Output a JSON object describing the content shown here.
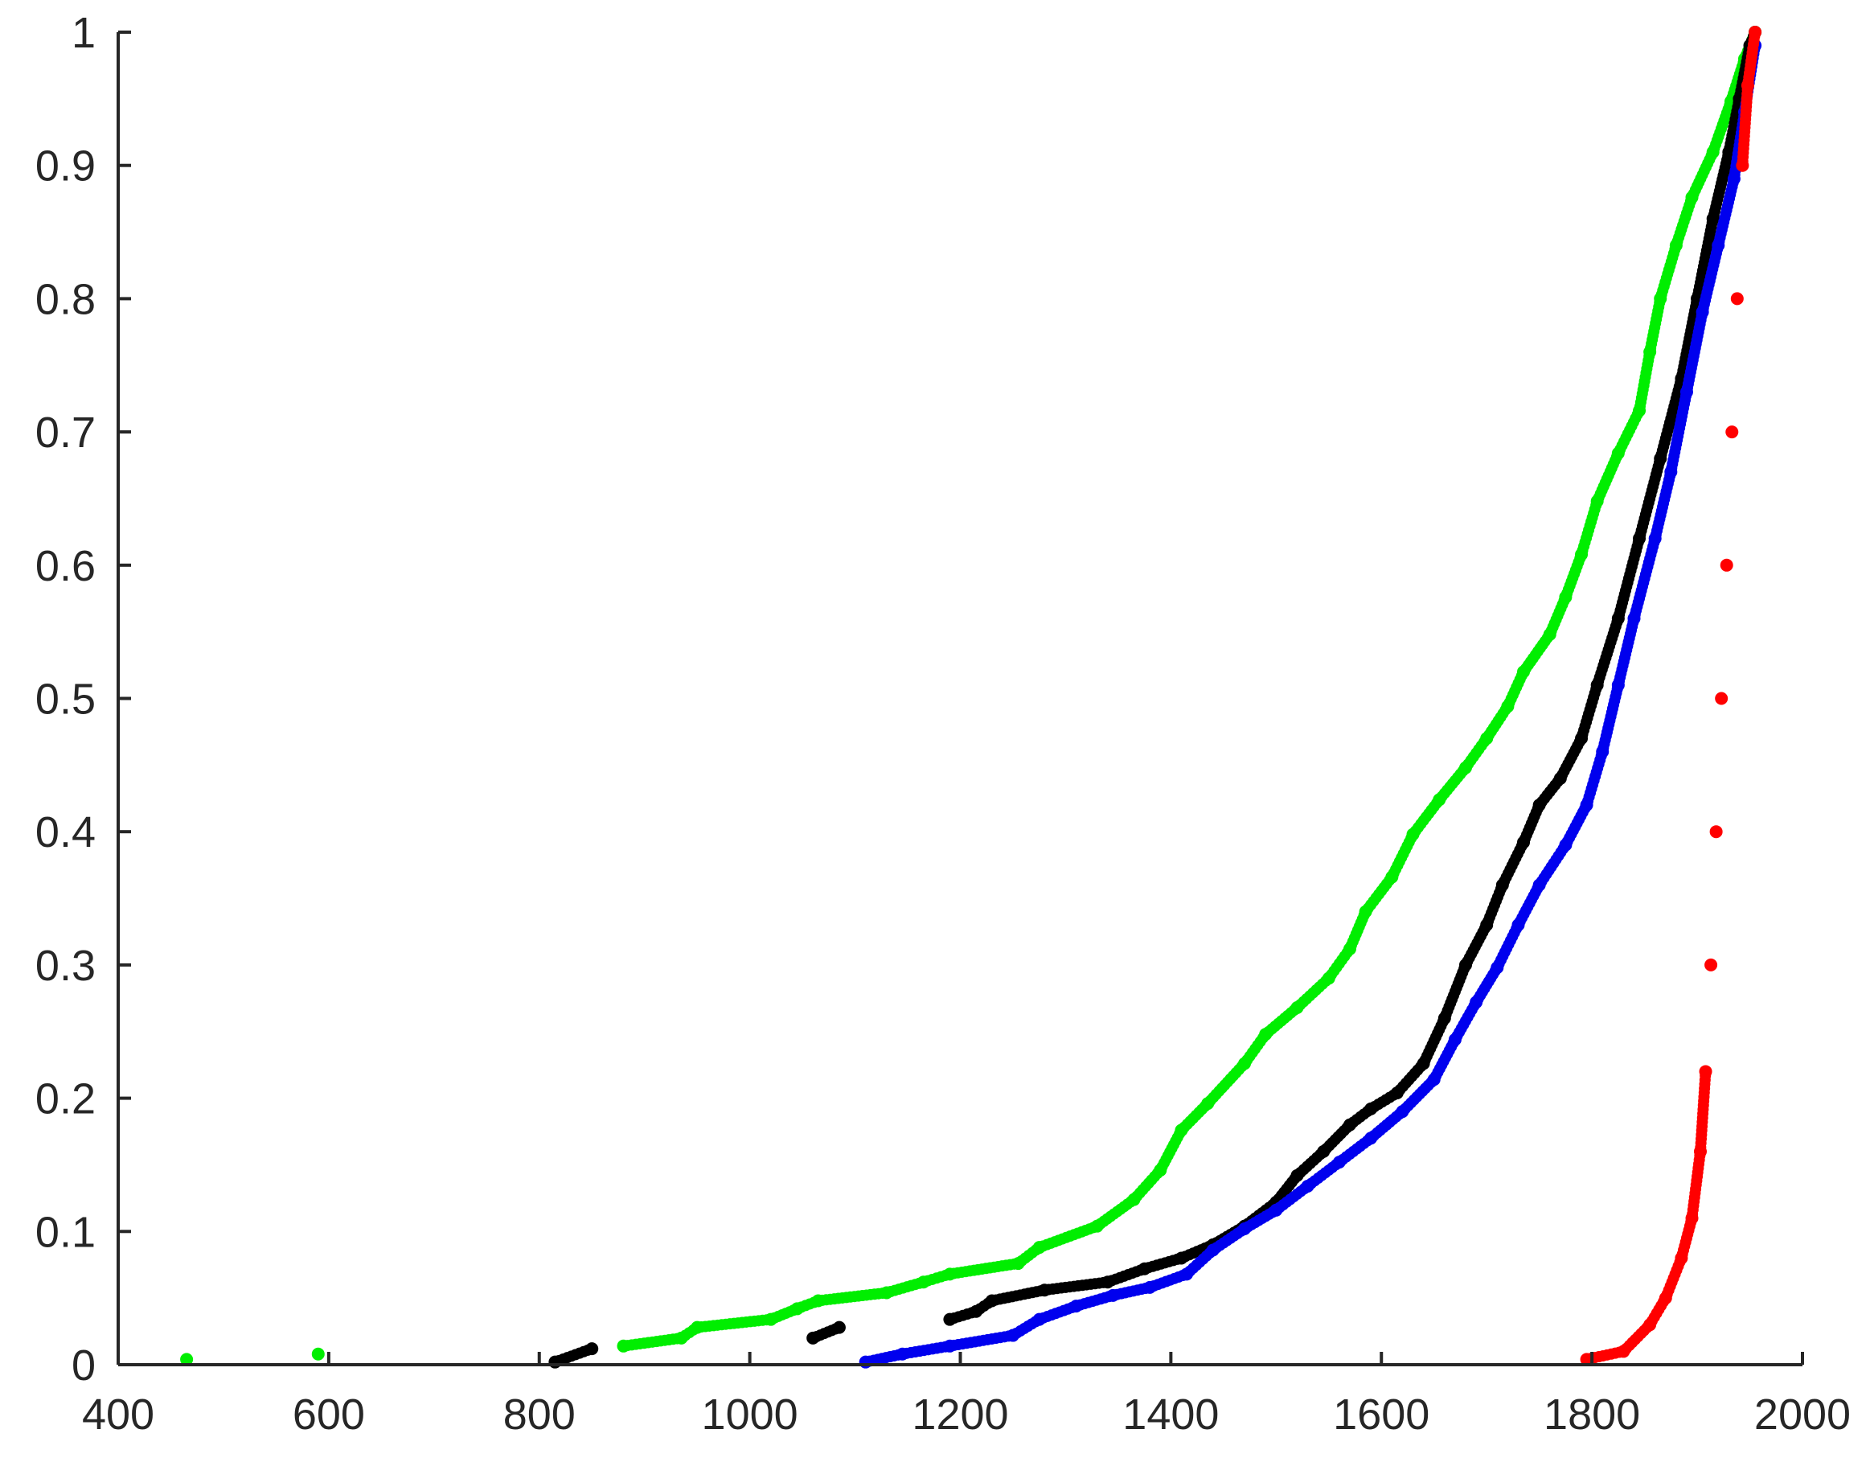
{
  "chart_data": {
    "type": "scatter",
    "title": "",
    "xlabel": "",
    "ylabel": "",
    "xlim": [
      400,
      2000
    ],
    "ylim": [
      0,
      1
    ],
    "grid": false,
    "x_ticks": [
      "400",
      "600",
      "800",
      "1000",
      "1200",
      "1400",
      "1600",
      "1800",
      "2000"
    ],
    "y_ticks": [
      "0",
      "0.1",
      "0.2",
      "0.3",
      "0.4",
      "0.5",
      "0.6",
      "0.7",
      "0.8",
      "0.9",
      "1"
    ],
    "series": [
      {
        "color": "#00ee00",
        "points": [
          [
            465,
            0.004
          ],
          [
            590,
            0.008
          ],
          [
            880,
            0.014
          ],
          [
            935,
            0.02
          ],
          [
            950,
            0.028
          ],
          [
            1020,
            0.034
          ],
          [
            1045,
            0.042
          ],
          [
            1065,
            0.048
          ],
          [
            1130,
            0.054
          ],
          [
            1165,
            0.062
          ],
          [
            1190,
            0.068
          ],
          [
            1255,
            0.076
          ],
          [
            1275,
            0.088
          ],
          [
            1330,
            0.104
          ],
          [
            1365,
            0.124
          ],
          [
            1390,
            0.146
          ],
          [
            1410,
            0.176
          ],
          [
            1435,
            0.196
          ],
          [
            1470,
            0.226
          ],
          [
            1490,
            0.248
          ],
          [
            1520,
            0.268
          ],
          [
            1550,
            0.29
          ],
          [
            1570,
            0.312
          ],
          [
            1585,
            0.34
          ],
          [
            1610,
            0.366
          ],
          [
            1630,
            0.398
          ],
          [
            1655,
            0.424
          ],
          [
            1680,
            0.448
          ],
          [
            1700,
            0.47
          ],
          [
            1720,
            0.494
          ],
          [
            1735,
            0.52
          ],
          [
            1760,
            0.548
          ],
          [
            1775,
            0.576
          ],
          [
            1790,
            0.608
          ],
          [
            1805,
            0.648
          ],
          [
            1825,
            0.684
          ],
          [
            1845,
            0.716
          ],
          [
            1855,
            0.76
          ],
          [
            1865,
            0.8
          ],
          [
            1880,
            0.84
          ],
          [
            1895,
            0.876
          ],
          [
            1915,
            0.91
          ],
          [
            1932,
            0.948
          ],
          [
            1945,
            0.98
          ],
          [
            1955,
            1.0
          ]
        ]
      },
      {
        "color": "#000000",
        "points": [
          [
            815,
            0.002
          ],
          [
            850,
            0.012
          ],
          [
            1060,
            0.02
          ],
          [
            1085,
            0.028
          ],
          [
            1190,
            0.034
          ],
          [
            1215,
            0.04
          ],
          [
            1230,
            0.048
          ],
          [
            1280,
            0.056
          ],
          [
            1340,
            0.062
          ],
          [
            1375,
            0.072
          ],
          [
            1410,
            0.08
          ],
          [
            1440,
            0.09
          ],
          [
            1470,
            0.104
          ],
          [
            1500,
            0.122
          ],
          [
            1520,
            0.142
          ],
          [
            1545,
            0.16
          ],
          [
            1570,
            0.18
          ],
          [
            1590,
            0.192
          ],
          [
            1615,
            0.204
          ],
          [
            1640,
            0.226
          ],
          [
            1660,
            0.26
          ],
          [
            1680,
            0.3
          ],
          [
            1700,
            0.33
          ],
          [
            1715,
            0.36
          ],
          [
            1735,
            0.392
          ],
          [
            1750,
            0.42
          ],
          [
            1770,
            0.44
          ],
          [
            1790,
            0.47
          ],
          [
            1805,
            0.51
          ],
          [
            1825,
            0.56
          ],
          [
            1845,
            0.62
          ],
          [
            1865,
            0.68
          ],
          [
            1885,
            0.74
          ],
          [
            1900,
            0.8
          ],
          [
            1915,
            0.86
          ],
          [
            1930,
            0.91
          ],
          [
            1940,
            0.95
          ],
          [
            1950,
            0.99
          ],
          [
            1955,
            1.0
          ]
        ]
      },
      {
        "color": "#0000ee",
        "points": [
          [
            1110,
            0.002
          ],
          [
            1145,
            0.008
          ],
          [
            1190,
            0.014
          ],
          [
            1250,
            0.022
          ],
          [
            1275,
            0.034
          ],
          [
            1310,
            0.044
          ],
          [
            1345,
            0.052
          ],
          [
            1380,
            0.058
          ],
          [
            1415,
            0.068
          ],
          [
            1440,
            0.086
          ],
          [
            1470,
            0.102
          ],
          [
            1500,
            0.116
          ],
          [
            1530,
            0.134
          ],
          [
            1560,
            0.152
          ],
          [
            1590,
            0.17
          ],
          [
            1620,
            0.19
          ],
          [
            1650,
            0.214
          ],
          [
            1670,
            0.244
          ],
          [
            1690,
            0.272
          ],
          [
            1710,
            0.298
          ],
          [
            1730,
            0.33
          ],
          [
            1750,
            0.36
          ],
          [
            1775,
            0.39
          ],
          [
            1795,
            0.42
          ],
          [
            1810,
            0.46
          ],
          [
            1825,
            0.51
          ],
          [
            1840,
            0.56
          ],
          [
            1860,
            0.62
          ],
          [
            1875,
            0.67
          ],
          [
            1890,
            0.73
          ],
          [
            1905,
            0.79
          ],
          [
            1920,
            0.84
          ],
          [
            1935,
            0.89
          ],
          [
            1945,
            0.94
          ],
          [
            1955,
            0.99
          ]
        ]
      },
      {
        "color": "#ff0000",
        "points": [
          [
            1795,
            0.004
          ],
          [
            1830,
            0.01
          ],
          [
            1855,
            0.03
          ],
          [
            1870,
            0.05
          ],
          [
            1885,
            0.08
          ],
          [
            1895,
            0.11
          ],
          [
            1903,
            0.16
          ],
          [
            1908,
            0.22
          ],
          [
            1913,
            0.3
          ],
          [
            1918,
            0.4
          ],
          [
            1923,
            0.5
          ],
          [
            1928,
            0.6
          ],
          [
            1933,
            0.7
          ],
          [
            1938,
            0.8
          ],
          [
            1943,
            0.9
          ],
          [
            1948,
            0.96
          ],
          [
            1955,
            1.0
          ]
        ]
      }
    ]
  }
}
